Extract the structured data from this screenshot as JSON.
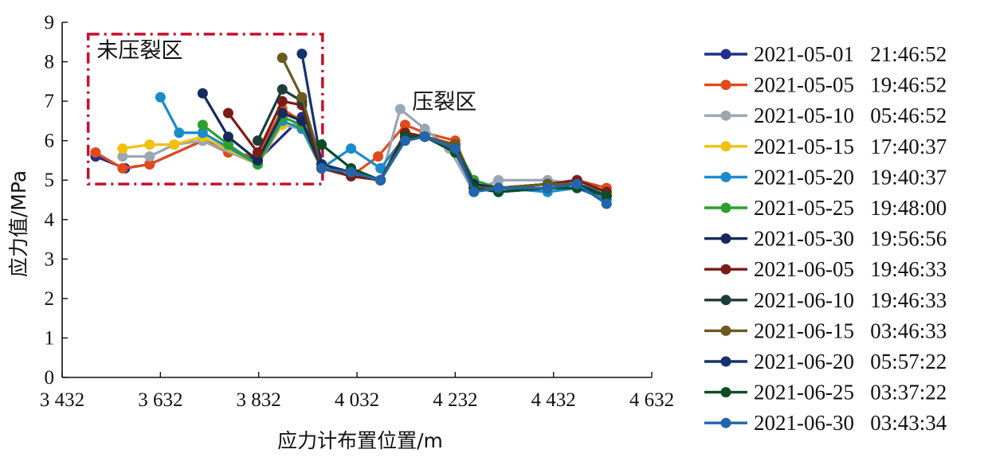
{
  "chart_data": {
    "type": "line",
    "title": "",
    "xlabel": "应力计布置位置/m",
    "ylabel": "应力值/MPa",
    "xlim": [
      3432,
      4632
    ],
    "ylim": [
      0,
      9
    ],
    "x_ticks": [
      3432,
      3632,
      3832,
      4032,
      4232,
      4432,
      4632
    ],
    "x_tick_labels": [
      "3 432",
      "3 632",
      "3 832",
      "4 032",
      "4 232",
      "4 432",
      "4 632"
    ],
    "y_ticks": [
      0,
      1,
      2,
      3,
      4,
      5,
      6,
      7,
      8,
      9
    ],
    "y_tick_labels": [
      "0",
      "1",
      "2",
      "3",
      "4",
      "5",
      "6",
      "7",
      "8",
      "9"
    ],
    "grid": false,
    "legend_position": "right",
    "annotations": [
      {
        "text": "未压裂区",
        "x": 3590,
        "y": 8.1
      },
      {
        "text": "压裂区",
        "x": 4210,
        "y": 6.8
      }
    ],
    "highlight_box": {
      "x0": 3485,
      "x1": 3962,
      "y0": 4.9,
      "y1": 8.7,
      "color": "#c8102e",
      "style": "dash-dot"
    },
    "series": [
      {
        "name": "2021-05-01   21:46:52",
        "color": "#1f2f8a",
        "x": [
          3500,
          3560,
          3610,
          3718,
          3830,
          3920,
          3960,
          4020,
          4080,
          4130,
          4170,
          4232,
          4270,
          4320,
          4420,
          4480,
          4540
        ],
        "y": [
          5.6,
          5.3,
          5.4,
          6.0,
          5.5,
          6.6,
          5.3,
          5.1,
          5.0,
          6.2,
          6.1,
          5.9,
          4.9,
          4.8,
          4.9,
          4.9,
          4.6
        ]
      },
      {
        "name": "2021-05-05   19:46:52",
        "color": "#e04a1c",
        "x": [
          3500,
          3555,
          3610,
          3718,
          3770,
          3830,
          3880,
          3920,
          3960,
          4020,
          4075,
          4130,
          4170,
          4232,
          4270,
          4320,
          4420,
          4480,
          4540
        ],
        "y": [
          5.7,
          5.3,
          5.4,
          6.0,
          5.7,
          5.6,
          6.8,
          6.5,
          5.3,
          5.1,
          5.6,
          6.4,
          6.2,
          6.0,
          4.9,
          4.8,
          4.9,
          5.0,
          4.8
        ]
      },
      {
        "name": "2021-05-10   05:46:52",
        "color": "#9aa6b2",
        "x": [
          3555,
          3610,
          3660,
          3718,
          3830,
          3880,
          3920,
          3960,
          4020,
          4080,
          4120,
          4170,
          4220,
          4270,
          4320,
          4420,
          4480,
          4540
        ],
        "y": [
          5.6,
          5.6,
          5.9,
          6.0,
          5.4,
          6.4,
          6.3,
          5.3,
          5.1,
          5.0,
          6.8,
          6.3,
          5.8,
          4.7,
          5.0,
          5.0,
          4.9,
          4.4
        ]
      },
      {
        "name": "2021-05-15   17:40:37",
        "color": "#f2c10f",
        "x": [
          3555,
          3610,
          3660,
          3718,
          3830,
          3880,
          3920,
          3960,
          4020,
          4080,
          4130,
          4170,
          4232,
          4270,
          4320,
          4420,
          4480,
          4540
        ],
        "y": [
          5.8,
          5.9,
          5.9,
          6.1,
          5.4,
          6.4,
          6.4,
          5.3,
          5.1,
          5.0,
          6.2,
          6.1,
          5.9,
          4.8,
          4.8,
          4.8,
          4.8,
          4.5
        ]
      },
      {
        "name": "2021-05-20   19:40:37",
        "color": "#1a8bcc",
        "x": [
          3632,
          3670,
          3718,
          3830,
          3880,
          3920,
          3960,
          4020,
          4080,
          4130,
          4170,
          4232,
          4270,
          4320,
          4420,
          4480,
          4540
        ],
        "y": [
          7.1,
          6.2,
          6.2,
          5.4,
          6.5,
          6.3,
          5.3,
          5.8,
          5.3,
          6.1,
          6.1,
          5.9,
          4.7,
          4.8,
          4.7,
          4.8,
          4.5
        ]
      },
      {
        "name": "2021-05-25   19:48:00",
        "color": "#2ca02c",
        "x": [
          3718,
          3770,
          3830,
          3880,
          3920,
          3960,
          4020,
          4080,
          4130,
          4170,
          4232,
          4270,
          4320,
          4420,
          4480,
          4540
        ],
        "y": [
          6.4,
          5.9,
          5.4,
          6.6,
          6.4,
          5.3,
          5.2,
          5.0,
          6.2,
          6.1,
          5.9,
          5.0,
          4.8,
          4.8,
          4.9,
          4.7
        ]
      },
      {
        "name": "2021-05-30   19:56:56",
        "color": "#16295c",
        "x": [
          3718,
          3770,
          3830,
          3880,
          3920,
          3960,
          4020,
          4080,
          4130,
          4170,
          4232,
          4270,
          4320,
          4420,
          4480,
          4540
        ],
        "y": [
          7.2,
          6.1,
          5.5,
          6.7,
          6.5,
          5.3,
          5.1,
          5.0,
          6.1,
          6.1,
          5.9,
          4.9,
          4.8,
          4.9,
          4.9,
          4.6
        ]
      },
      {
        "name": "2021-06-05   19:46:33",
        "color": "#7b1c16",
        "x": [
          3770,
          3830,
          3880,
          3920,
          3960,
          4020,
          4080,
          4130,
          4170,
          4232,
          4270,
          4320,
          4420,
          4480,
          4540
        ],
        "y": [
          6.7,
          5.7,
          7.0,
          6.9,
          5.3,
          5.1,
          5.0,
          6.2,
          6.1,
          5.9,
          4.8,
          4.8,
          4.9,
          5.0,
          4.7
        ]
      },
      {
        "name": "2021-06-10   19:46:33",
        "color": "#1d3d3d",
        "x": [
          3830,
          3880,
          3920,
          3960,
          4020,
          4080,
          4130,
          4170,
          4232,
          4270,
          4320,
          4420,
          4480,
          4540
        ],
        "y": [
          6.0,
          7.3,
          7.0,
          5.4,
          5.2,
          5.0,
          6.0,
          6.1,
          5.9,
          4.8,
          4.8,
          4.9,
          4.9,
          4.6
        ]
      },
      {
        "name": "2021-06-15   03:46:33",
        "color": "#6b5a1c",
        "x": [
          3880,
          3920,
          3960,
          4020,
          4080,
          4130,
          4170,
          4232,
          4270,
          4320,
          4420,
          4480,
          4540
        ],
        "y": [
          8.1,
          7.1,
          5.4,
          5.2,
          5.0,
          6.1,
          6.1,
          5.9,
          4.8,
          4.8,
          4.9,
          4.9,
          4.6
        ]
      },
      {
        "name": "2021-06-20   05:57:22",
        "color": "#14336b",
        "x": [
          3920,
          3960,
          4020,
          4080,
          4130,
          4170,
          4232,
          4270,
          4320,
          4420,
          4480,
          4540
        ],
        "y": [
          8.2,
          5.4,
          5.2,
          5.0,
          6.1,
          6.1,
          5.8,
          4.8,
          4.7,
          4.8,
          4.9,
          4.6
        ]
      },
      {
        "name": "2021-06-25   03:37:22",
        "color": "#0c4d26",
        "x": [
          3960,
          4020,
          4080,
          4130,
          4170,
          4232,
          4270,
          4320,
          4420,
          4480,
          4540
        ],
        "y": [
          5.9,
          5.3,
          5.0,
          6.1,
          6.1,
          5.7,
          4.8,
          4.7,
          4.8,
          4.8,
          4.6
        ]
      },
      {
        "name": "2021-06-30   03:43:34",
        "color": "#2166ac",
        "x": [
          3960,
          4020,
          4080,
          4130,
          4170,
          4232,
          4270,
          4320,
          4420,
          4480,
          4540
        ],
        "y": [
          5.3,
          5.2,
          5.0,
          6.0,
          6.1,
          5.8,
          4.7,
          4.8,
          4.8,
          4.9,
          4.4
        ]
      }
    ]
  }
}
